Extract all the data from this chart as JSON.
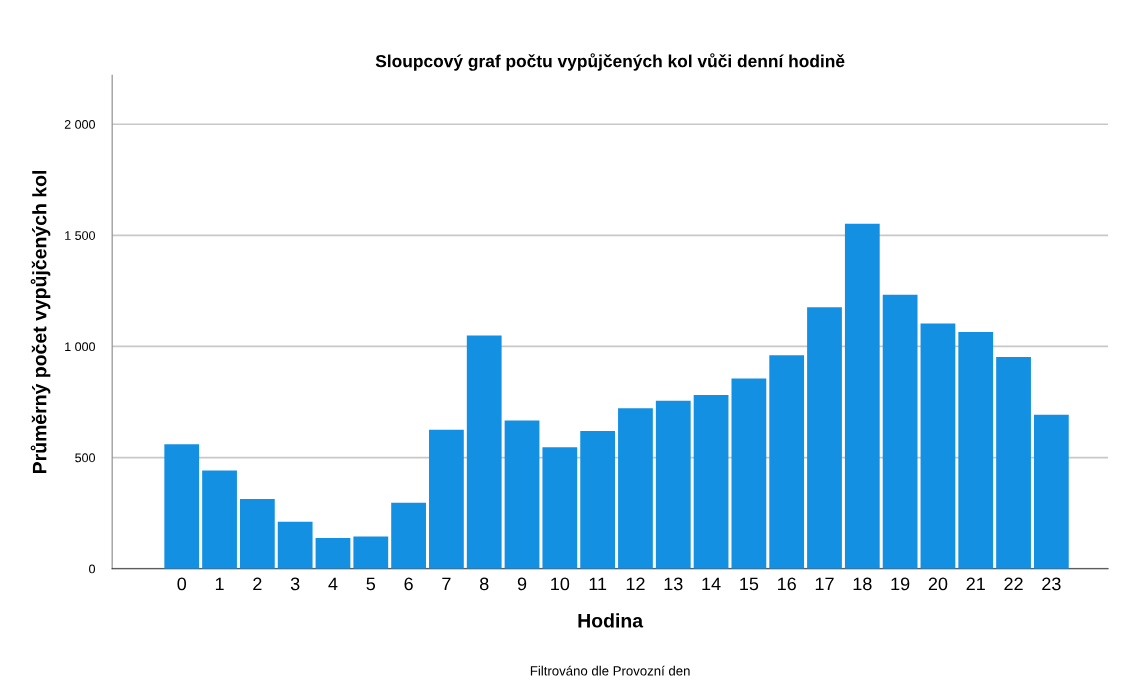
{
  "chart_data": {
    "type": "bar",
    "title": "Sloupcový graf počtu vypůjčených kol vůči denní hodině",
    "xlabel": "Hodina",
    "ylabel": "Průměrný počet vypůjčených kol",
    "categories": [
      "0",
      "1",
      "2",
      "3",
      "4",
      "5",
      "6",
      "7",
      "8",
      "9",
      "10",
      "11",
      "12",
      "13",
      "14",
      "15",
      "16",
      "17",
      "18",
      "19",
      "20",
      "21",
      "22",
      "23"
    ],
    "values": [
      560,
      442,
      314,
      211,
      138,
      145,
      297,
      625,
      1049,
      667,
      546,
      620,
      722,
      756,
      782,
      856,
      960,
      1176,
      1552,
      1233,
      1103,
      1065,
      952,
      693
    ],
    "color": "#1490e3",
    "ylim": [
      0,
      2220
    ],
    "yticks": [
      {
        "value": 0,
        "label": "0"
      },
      {
        "value": 500,
        "label": "500"
      },
      {
        "value": 1000,
        "label": "1 000"
      },
      {
        "value": 1500,
        "label": "1 500"
      },
      {
        "value": 2000,
        "label": "2 000"
      }
    ],
    "grid": "y",
    "annotations": [
      "Filtrováno dle Provozní den"
    ]
  }
}
